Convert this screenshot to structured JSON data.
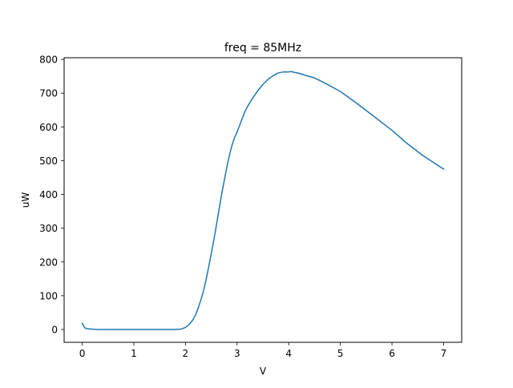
{
  "chart_data": {
    "type": "line",
    "title": "freq = 85MHz",
    "xlabel": "V",
    "ylabel": "uW",
    "xlim": [
      -0.35,
      7.35
    ],
    "ylim": [
      -38,
      805
    ],
    "xticks": [
      0,
      1,
      2,
      3,
      4,
      5,
      6,
      7
    ],
    "yticks": [
      0,
      100,
      200,
      300,
      400,
      500,
      600,
      700,
      800
    ],
    "grid": false,
    "legend": "none",
    "series": [
      {
        "color": "#1f77b4",
        "x": [
          0.0,
          0.05,
          0.1,
          0.2,
          0.3,
          0.5,
          1.0,
          1.5,
          1.8,
          1.9,
          1.95,
          2.0,
          2.05,
          2.1,
          2.15,
          2.2,
          2.25,
          2.3,
          2.35,
          2.4,
          2.45,
          2.5,
          2.55,
          2.6,
          2.65,
          2.7,
          2.75,
          2.8,
          2.85,
          2.9,
          2.95,
          3.0,
          3.05,
          3.1,
          3.15,
          3.2,
          3.3,
          3.4,
          3.5,
          3.6,
          3.7,
          3.8,
          3.9,
          4.0,
          4.05,
          4.1,
          4.2,
          4.3,
          4.5,
          4.7,
          5.0,
          5.3,
          5.6,
          6.0,
          6.3,
          6.6,
          7.0
        ],
        "y": [
          18,
          5,
          2,
          1,
          0,
          0,
          0,
          0,
          0,
          1,
          3,
          6,
          12,
          20,
          30,
          45,
          65,
          88,
          115,
          148,
          185,
          225,
          265,
          310,
          355,
          400,
          440,
          480,
          515,
          545,
          568,
          585,
          605,
          625,
          645,
          660,
          685,
          707,
          726,
          741,
          752,
          760,
          763,
          763,
          764,
          762,
          759,
          754,
          745,
          730,
          705,
          672,
          637,
          590,
          550,
          515,
          475
        ]
      }
    ]
  }
}
